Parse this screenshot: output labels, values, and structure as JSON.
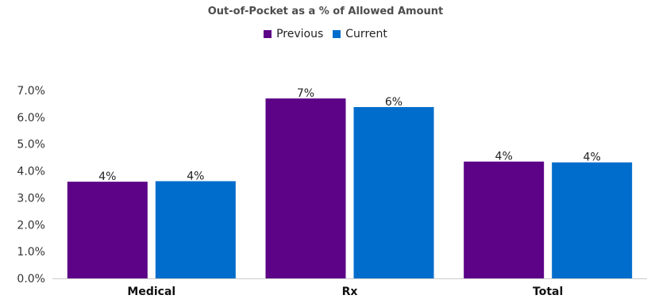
{
  "chart_data": {
    "type": "bar",
    "title": "Out-of-Pocket as a % of Allowed Amount",
    "categories": [
      "Medical",
      "Rx",
      "Total"
    ],
    "series": [
      {
        "name": "Previous",
        "color": "#5c0387",
        "values": [
          3.6,
          6.7,
          4.35
        ],
        "labels": [
          "4%",
          "7%",
          "4%"
        ]
      },
      {
        "name": "Current",
        "color": "#006dcc",
        "values": [
          3.62,
          6.38,
          4.32
        ],
        "labels": [
          "4%",
          "6%",
          "4%"
        ]
      }
    ],
    "ylim": [
      0,
      7.0
    ],
    "y_ticks": [
      "0.0%",
      "1.0%",
      "2.0%",
      "3.0%",
      "4.0%",
      "5.0%",
      "6.0%",
      "7.0%"
    ],
    "xlabel": "",
    "ylabel": "",
    "legend": "top-center",
    "grid": false
  }
}
